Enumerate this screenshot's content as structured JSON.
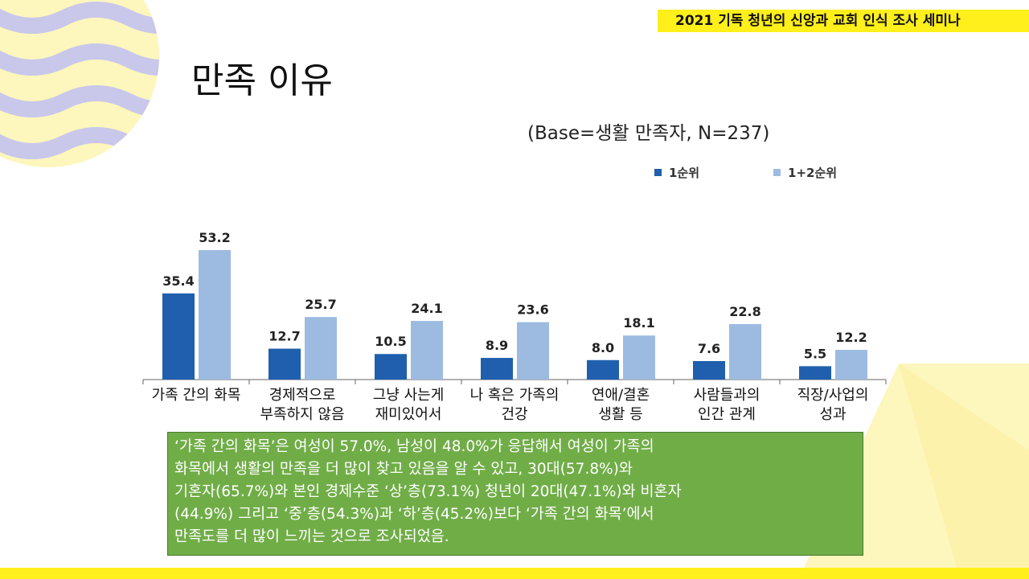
{
  "header": {
    "banner": "2021 기독 청년의 신앙과 교회 인식 조사 세미나"
  },
  "page": {
    "title": "만족 이유",
    "base_note": "(Base=생활 만족자, N=237)"
  },
  "colors": {
    "series1": "#1f5fae",
    "series2": "#9dbbe0",
    "accent_yellow": "#ffef1a",
    "box_green": "#70ad47",
    "wave_purple": "#c9c8ea",
    "wave_yellow": "#fdf6bd"
  },
  "chart_data": {
    "type": "bar",
    "title": "",
    "xlabel": "",
    "ylabel": "",
    "ylim": [
      0,
      60
    ],
    "grid": false,
    "legend": "top-right",
    "categories": [
      [
        "가족 간의 화목"
      ],
      [
        "경제적으로",
        "부족하지 않음"
      ],
      [
        "그냥 사는게",
        "재미있어서"
      ],
      [
        "나 혹은 가족의",
        "건강"
      ],
      [
        "연애/결혼",
        "생활 등"
      ],
      [
        "사람들과의",
        "인간 관계"
      ],
      [
        "직장/사업의",
        "성과"
      ]
    ],
    "series": [
      {
        "name": "1순위",
        "values": [
          35.4,
          12.7,
          10.5,
          8.9,
          8.0,
          7.6,
          5.5
        ],
        "labels": [
          "35.4",
          "12.7",
          "10.5",
          "8.9",
          "8.0",
          "7.6",
          "5.5"
        ]
      },
      {
        "name": "1+2순위",
        "values": [
          53.2,
          25.7,
          24.1,
          23.6,
          18.1,
          22.8,
          12.2
        ],
        "labels": [
          "53.2",
          "25.7",
          "24.1",
          "23.6",
          "18.1",
          "22.8",
          "12.2"
        ]
      }
    ]
  },
  "summary": {
    "text": "‘가족 간의 화목’은 여성이 57.0%, 남성이 48.0%가 응답해서 여성이 가족의\n화목에서 생활의 만족을 더 많이 찾고 있음을 알 수 있고, 30대(57.8%)와\n기혼자(65.7%)와 본인 경제수준 ‘상’층(73.1%) 청년이 20대(47.1%)와 비혼자\n(44.9%) 그리고 ‘중’층(54.3%)과 ‘하’층(45.2%)보다 ‘가족 간의 화목’에서\n만족도를 더 많이 느끼는 것으로 조사되었음."
  }
}
